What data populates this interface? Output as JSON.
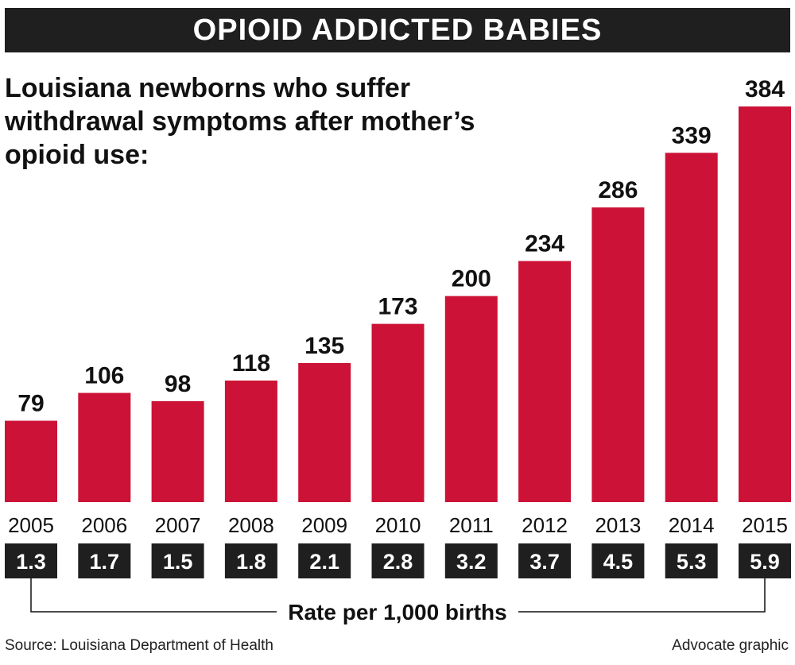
{
  "header": {
    "title": "OPIOID ADDICTED BABIES",
    "subtitle": "Louisiana newborns who suffer withdrawal symptoms after mother’s opioid use:"
  },
  "footer": {
    "rate_caption": "Rate per 1,000 births",
    "source": "Source: Louisiana Department of Health",
    "credit": "Advocate graphic"
  },
  "colors": {
    "bar": "#cc1236",
    "badge": "#1f1f1f",
    "title_bar": "#1f1f1f"
  },
  "chart_data": {
    "type": "bar",
    "title": "OPIOID ADDICTED BABIES",
    "subtitle": "Louisiana newborns who suffer withdrawal symptoms after mother’s opioid use:",
    "categories": [
      "2005",
      "2006",
      "2007",
      "2008",
      "2009",
      "2010",
      "2011",
      "2012",
      "2013",
      "2014",
      "2015"
    ],
    "values": [
      79,
      106,
      98,
      118,
      135,
      173,
      200,
      234,
      286,
      339,
      384
    ],
    "rate_per_1000": [
      "1.3",
      "1.7",
      "1.5",
      "1.8",
      "2.1",
      "2.8",
      "3.2",
      "3.7",
      "4.5",
      "5.3",
      "5.9"
    ],
    "rate_label": "Rate per 1,000 births",
    "ylim": [
      0,
      384
    ],
    "grid": false,
    "legend": "none"
  }
}
